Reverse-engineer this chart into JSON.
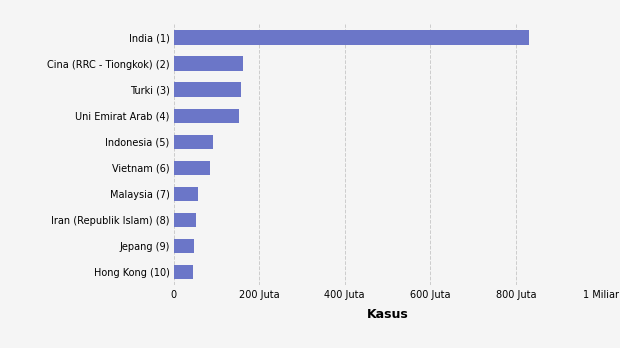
{
  "categories": [
    "Hong Kong (10)",
    "Jepang (9)",
    "Iran (Republik Islam) (8)",
    "Malaysia (7)",
    "Vietnam (6)",
    "Indonesia (5)",
    "Uni Emirat Arab (4)",
    "Turki (3)",
    "Cina (RRC - Tiongkok) (2)",
    "India (1)"
  ],
  "values": [
    45000000,
    47000000,
    52000000,
    57000000,
    85000000,
    92000000,
    152000000,
    157000000,
    162000000,
    830000000
  ],
  "bar_color": "#6b76c8",
  "xlabel": "Kasus",
  "background_color": "#f5f5f5",
  "plot_background": "#f5f5f5",
  "xlim": [
    0,
    1000000000
  ],
  "xtick_labels": [
    "0",
    "200 Juta",
    "400 Juta",
    "600 Juta",
    "800 Juta",
    "1 Miliar"
  ],
  "xtick_values": [
    0,
    200000000,
    400000000,
    600000000,
    800000000,
    1000000000
  ],
  "bar_height": 0.55,
  "label_fontsize": 7,
  "xtick_fontsize": 7,
  "xlabel_fontsize": 9
}
